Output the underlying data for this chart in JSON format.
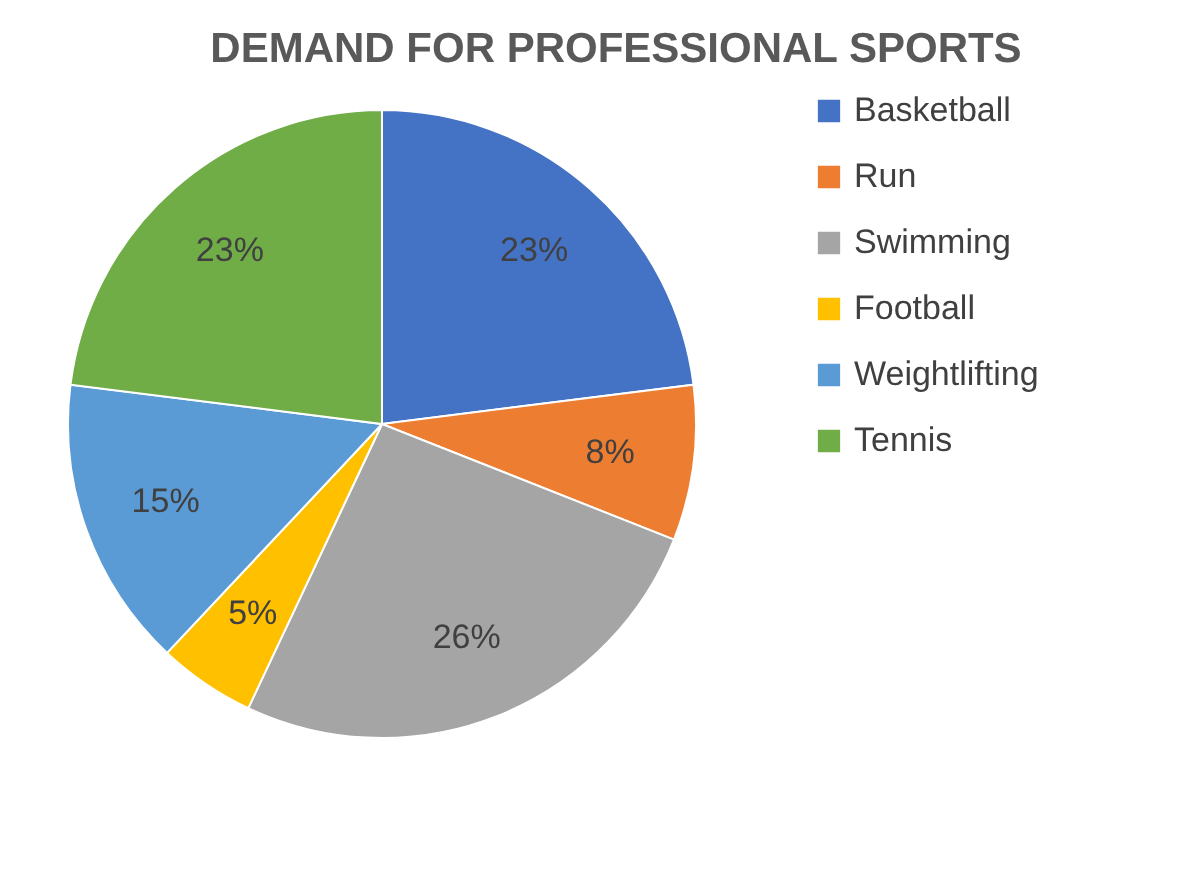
{
  "chart_data": {
    "type": "pie",
    "title": "DEMAND FOR PROFESSIONAL SPORTS",
    "categories": [
      "Basketball",
      "Run",
      "Swimming",
      "Football",
      "Weightlifting",
      "Tennis"
    ],
    "values": [
      23,
      8,
      26,
      5,
      15,
      23
    ],
    "value_labels": [
      "23%",
      "8%",
      "26%",
      "5%",
      "15%",
      "23%"
    ],
    "colors": [
      "#4472c4",
      "#ed7d31",
      "#a5a5a5",
      "#ffc000",
      "#5b9bd5",
      "#70ad47"
    ],
    "legend": "right"
  }
}
